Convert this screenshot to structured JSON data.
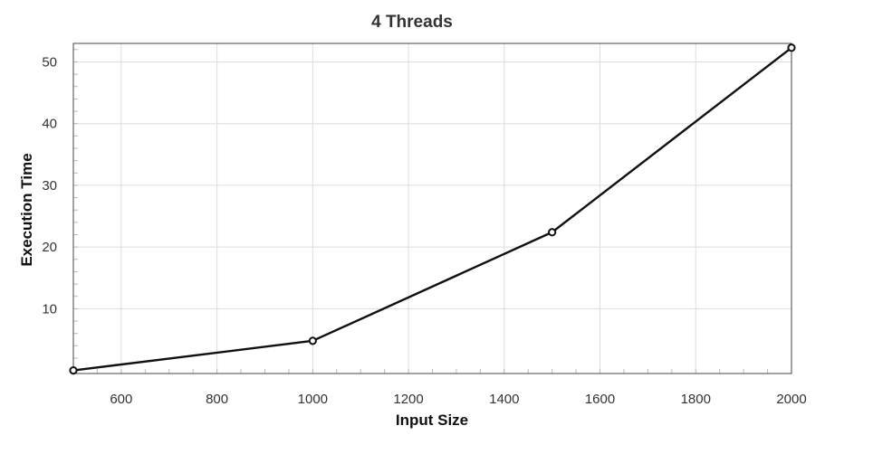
{
  "chart_data": {
    "type": "line",
    "title": "4 Threads",
    "xlabel": "Input Size",
    "ylabel": "Execution Time",
    "x": [
      500,
      1000,
      1500,
      2000
    ],
    "series": [
      {
        "values": [
          0,
          4.8,
          22.4,
          52.3
        ],
        "color": "#111111"
      }
    ],
    "xlim": [
      500,
      2000
    ],
    "ylim": [
      -0.5,
      53
    ],
    "xticks": [
      600,
      800,
      1000,
      1200,
      1400,
      1600,
      1800,
      2000
    ],
    "yticks": [
      10,
      20,
      30,
      40,
      50
    ],
    "grid": true,
    "legend": "none",
    "markers": "hollow-circle"
  }
}
